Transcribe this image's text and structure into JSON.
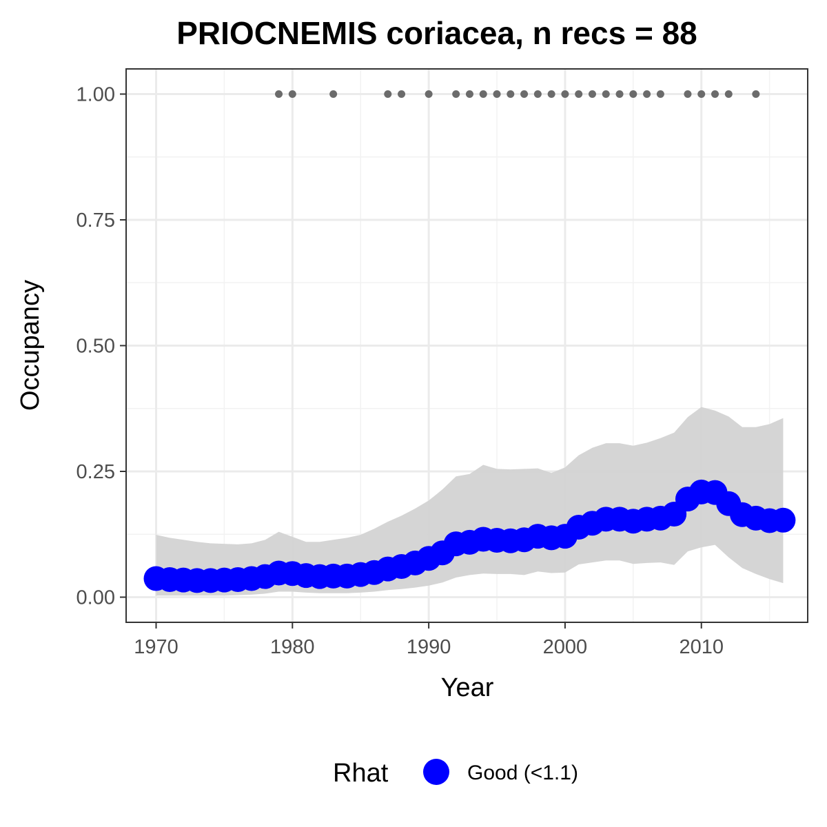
{
  "chart_data": {
    "type": "line",
    "title": "PRIOCNEMIS coriacea, n recs = 88",
    "xlabel": "Year",
    "ylabel": "Occupancy",
    "xlim": [
      1967.8,
      2017.8
    ],
    "ylim": [
      -0.05,
      1.05
    ],
    "x_ticks": [
      1970,
      1980,
      1990,
      2000,
      2010
    ],
    "x_tick_labels": [
      "1970",
      "1980",
      "1990",
      "2000",
      "2010"
    ],
    "y_ticks": [
      0,
      0.25,
      0.5,
      0.75,
      1
    ],
    "y_tick_labels": [
      "0.00",
      "0.25",
      "0.50",
      "0.75",
      "1.00"
    ],
    "grid": true,
    "legend": {
      "title": "Rhat",
      "position": "bottom",
      "entries": [
        {
          "label": "Good (<1.1)",
          "color": "#0000ff"
        }
      ]
    },
    "series": [
      {
        "name": "Good (<1.1)",
        "color": "#0000ff",
        "x": [
          1970,
          1971,
          1972,
          1973,
          1974,
          1975,
          1976,
          1977,
          1978,
          1979,
          1980,
          1981,
          1982,
          1983,
          1984,
          1985,
          1986,
          1987,
          1988,
          1989,
          1990,
          1991,
          1992,
          1993,
          1994,
          1995,
          1996,
          1997,
          1998,
          1999,
          2000,
          2001,
          2002,
          2003,
          2004,
          2005,
          2006,
          2007,
          2008,
          2009,
          2010,
          2011,
          2012,
          2013,
          2014,
          2015,
          2016
        ],
        "y": [
          0.037,
          0.035,
          0.034,
          0.033,
          0.033,
          0.034,
          0.035,
          0.037,
          0.041,
          0.048,
          0.047,
          0.043,
          0.041,
          0.042,
          0.042,
          0.045,
          0.049,
          0.056,
          0.061,
          0.068,
          0.077,
          0.088,
          0.106,
          0.109,
          0.115,
          0.113,
          0.112,
          0.114,
          0.121,
          0.118,
          0.121,
          0.139,
          0.147,
          0.155,
          0.155,
          0.151,
          0.155,
          0.157,
          0.165,
          0.195,
          0.209,
          0.208,
          0.186,
          0.164,
          0.157,
          0.152,
          0.153
        ]
      }
    ],
    "ci_band": {
      "color": "#d3d3d3",
      "x": [
        1970,
        1971,
        1972,
        1973,
        1974,
        1975,
        1976,
        1977,
        1978,
        1979,
        1980,
        1981,
        1982,
        1983,
        1984,
        1985,
        1986,
        1987,
        1988,
        1989,
        1990,
        1991,
        1992,
        1993,
        1994,
        1995,
        1996,
        1997,
        1998,
        1999,
        2000,
        2001,
        2002,
        2003,
        2004,
        2005,
        2006,
        2007,
        2008,
        2009,
        2010,
        2011,
        2012,
        2013,
        2014,
        2015,
        2016
      ],
      "lower": [
        0.003,
        0.003,
        0.003,
        0.003,
        0.003,
        0.003,
        0.004,
        0.005,
        0.007,
        0.011,
        0.011,
        0.009,
        0.008,
        0.008,
        0.008,
        0.009,
        0.011,
        0.014,
        0.016,
        0.019,
        0.023,
        0.029,
        0.039,
        0.044,
        0.047,
        0.046,
        0.046,
        0.044,
        0.051,
        0.048,
        0.049,
        0.065,
        0.069,
        0.073,
        0.073,
        0.066,
        0.068,
        0.069,
        0.064,
        0.091,
        0.099,
        0.104,
        0.079,
        0.058,
        0.046,
        0.036,
        0.028
      ],
      "upper": [
        0.124,
        0.118,
        0.114,
        0.11,
        0.107,
        0.106,
        0.105,
        0.107,
        0.114,
        0.13,
        0.12,
        0.11,
        0.11,
        0.114,
        0.118,
        0.124,
        0.136,
        0.15,
        0.162,
        0.176,
        0.192,
        0.214,
        0.24,
        0.245,
        0.263,
        0.255,
        0.254,
        0.255,
        0.256,
        0.247,
        0.258,
        0.282,
        0.297,
        0.306,
        0.306,
        0.301,
        0.307,
        0.316,
        0.327,
        0.358,
        0.378,
        0.371,
        0.359,
        0.338,
        0.338,
        0.344,
        0.356
      ]
    },
    "detections": {
      "color": "#6b6b6b",
      "y": 1,
      "x": [
        1979,
        1980,
        1983,
        1987,
        1988,
        1990,
        1992,
        1993,
        1994,
        1995,
        1996,
        1997,
        1998,
        1999,
        2000,
        2001,
        2002,
        2003,
        2004,
        2005,
        2006,
        2007,
        2009,
        2010,
        2011,
        2012,
        2014
      ]
    }
  }
}
